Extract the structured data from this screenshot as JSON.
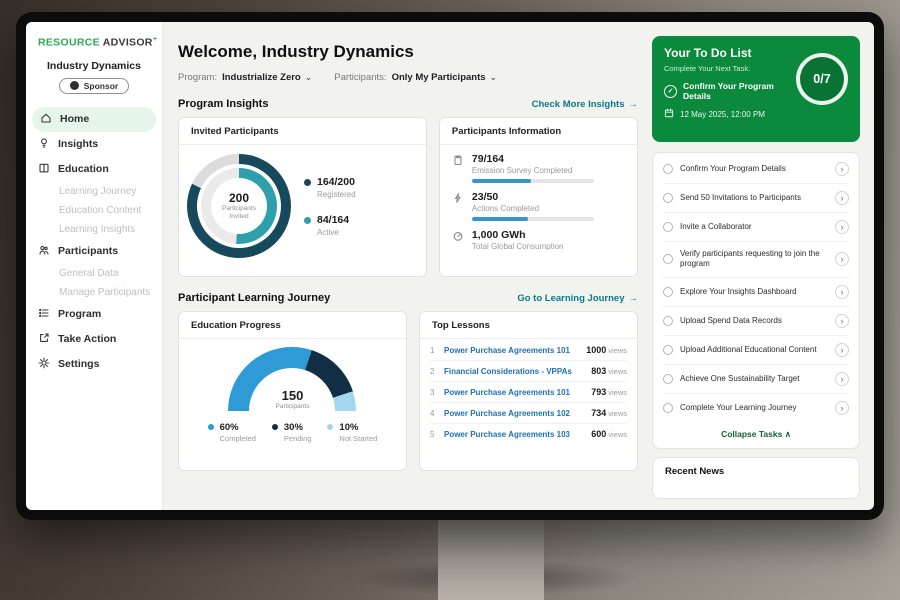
{
  "window": {
    "brand_primary": "RESOURCE",
    "brand_secondary": "ADVISOR",
    "brand_plus": "+"
  },
  "icons": {
    "chevron_down": "⌄",
    "arrow_right": "→",
    "chevron_right": "›",
    "check": "✓",
    "collapse_up": "∧"
  },
  "sidebar": {
    "org_name": "Industry Dynamics",
    "sponsor_badge": "Sponsor",
    "items": [
      {
        "label": "Home"
      },
      {
        "label": "Insights"
      },
      {
        "label": "Education"
      },
      {
        "label": "Learning Journey"
      },
      {
        "label": "Education Content"
      },
      {
        "label": "Learning Insights"
      },
      {
        "label": "Participants"
      },
      {
        "label": "General Data"
      },
      {
        "label": "Manage Participants"
      },
      {
        "label": "Program"
      },
      {
        "label": "Take Action"
      },
      {
        "label": "Settings"
      }
    ]
  },
  "header": {
    "title": "Welcome, Industry Dynamics",
    "program_label": "Program:",
    "program_value": "Industrialize Zero",
    "participants_label": "Participants:",
    "participants_value": "Only My Participants"
  },
  "insights": {
    "section_title": "Program Insights",
    "more_link": "Check More Insights",
    "invited_card": {
      "title": "Invited Participants",
      "center_value": "200",
      "center_label": "Participants Invited",
      "legend": [
        {
          "value": "164/200",
          "label": "Registered"
        },
        {
          "value": "84/164",
          "label": "Active"
        }
      ]
    },
    "info_card": {
      "title": "Participants Information",
      "rows": [
        {
          "value": "79/164",
          "label": "Emission Survey Completed"
        },
        {
          "value": "23/50",
          "label": "Actions Completed"
        },
        {
          "value": "1,000 GWh",
          "label": "Total Global Consumption"
        }
      ]
    }
  },
  "journey": {
    "section_title": "Participant Learning Journey",
    "more_link": "Go to Learning Journey",
    "education_card": {
      "title": "Education Progress",
      "center_value": "150",
      "center_label": "Participants",
      "legend": [
        {
          "value": "60%",
          "label": "Completed"
        },
        {
          "value": "30%",
          "label": "Pending"
        },
        {
          "value": "10%",
          "label": "Not Started"
        }
      ]
    },
    "lessons_card": {
      "title": "Top Lessons",
      "views_label": "views",
      "rows": [
        {
          "rank": "1",
          "title": "Power Purchase Agreements 101",
          "views": "1000"
        },
        {
          "rank": "2",
          "title": "Financial Considerations - VPPAs",
          "views": "803"
        },
        {
          "rank": "3",
          "title": "Power Purchase Agreements 101",
          "views": "793"
        },
        {
          "rank": "4",
          "title": "Power Purchase Agreements 102",
          "views": "734"
        },
        {
          "rank": "5",
          "title": "Power Purchase Agreements 103",
          "views": "600"
        }
      ]
    }
  },
  "todo": {
    "title": "Your To Do List",
    "subtitle": "Complete Your Next Task:",
    "next_task": "Confirm Your Program Details",
    "due": "12 May 2025, 12:00 PM",
    "progress": "0/7",
    "tasks": [
      "Confirm Your Program Details",
      "Send 50 Invitations to Participants",
      "Invite a Collaborator",
      "Verify participants requesting to join the program",
      "Explore Your Insights Dashboard",
      "Upload Spend Data Records",
      "Upload Additional Educational Content",
      "Achieve One Sustainability Target",
      "Complete Your Learning Journey"
    ],
    "collapse_label": "Collapse Tasks"
  },
  "news": {
    "title": "Recent News"
  },
  "theme": {
    "brand_green": "#31a94f",
    "todo_green": "#0b8a3e",
    "link_teal": "#0c7a8d",
    "lesson_blue": "#1f6fb2"
  },
  "chart_data": [
    {
      "type": "donut",
      "title": "Invited Participants",
      "center": {
        "value": 200,
        "label": "Participants Invited"
      },
      "outer": {
        "name": "Registered",
        "value": 164,
        "total": 200,
        "color": "#16495c"
      },
      "inner": {
        "name": "Active",
        "value": 84,
        "total": 164,
        "color": "#2da0ac"
      },
      "track": "#dcdcdc"
    },
    {
      "type": "bar",
      "title": "Participants Information",
      "bar_color": "#3596cf",
      "bars": [
        {
          "name": "Emission Survey Completed",
          "value": 79,
          "total": 164
        },
        {
          "name": "Actions Completed",
          "value": 23,
          "total": 50
        }
      ],
      "kpi": {
        "name": "Total Global Consumption",
        "value": "1,000 GWh"
      }
    },
    {
      "type": "gauge",
      "title": "Education Progress",
      "center": {
        "value": 150,
        "label": "Participants"
      },
      "segments": [
        {
          "name": "Completed",
          "pct": 60,
          "color": "#2e9bd6"
        },
        {
          "name": "Pending",
          "pct": 30,
          "color": "#122e44"
        },
        {
          "name": "Not Started",
          "pct": 10,
          "color": "#a5d6ef"
        }
      ]
    },
    {
      "type": "table",
      "title": "Top Lessons",
      "categories": [
        "Power Purchase Agreements 101",
        "Financial Considerations - VPPAs",
        "Power Purchase Agreements 101",
        "Power Purchase Agreements 102",
        "Power Purchase Agreements 103"
      ],
      "values": [
        1000,
        803,
        793,
        734,
        600
      ],
      "ylabel": "views"
    }
  ]
}
